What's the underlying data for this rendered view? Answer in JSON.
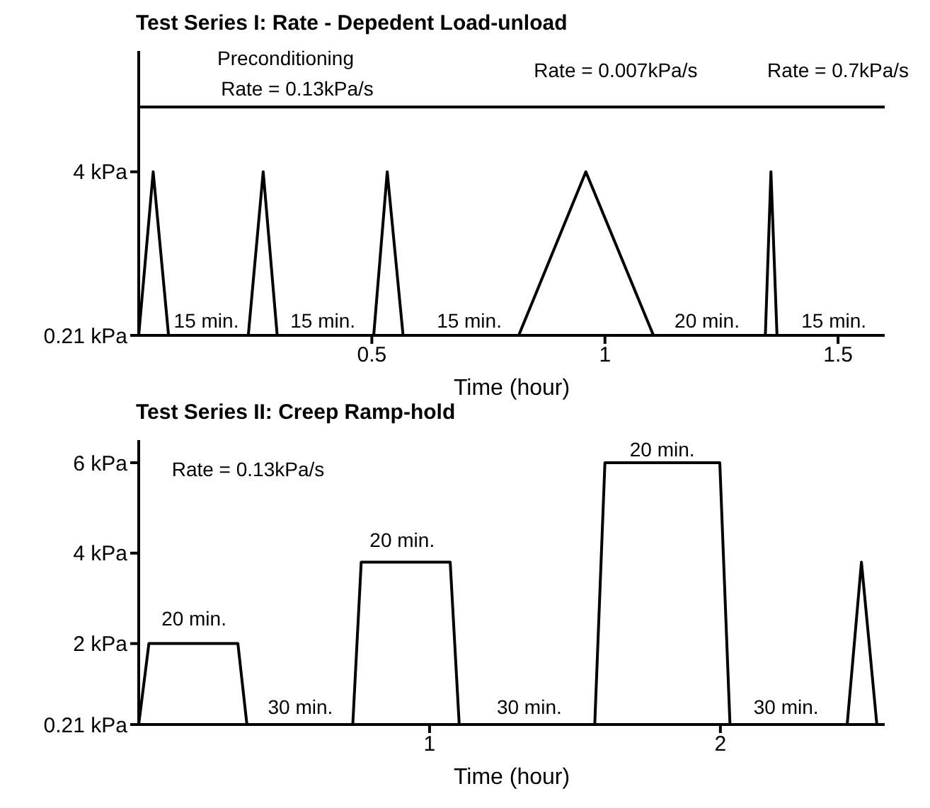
{
  "chart_data": [
    {
      "type": "line",
      "title": "Test Series I: Rate - Depedent Load-unload",
      "xlabel": "Time (hour)",
      "xlim": [
        0,
        1.6
      ],
      "xticks": [
        0.5,
        1,
        1.5
      ],
      "ylim": [
        0.21,
        6.8
      ],
      "yticks": [
        {
          "value": 0.21,
          "label": "0.21 kPa"
        },
        {
          "value": 4,
          "label": "4 kPa"
        }
      ],
      "marker": "none",
      "line_style": "solid",
      "series": [
        {
          "color": "#000000",
          "x": [
            0,
            0.031,
            0.064,
            0.235,
            0.267,
            0.297,
            0.504,
            0.533,
            0.567,
            0.815,
            0.959,
            1.104,
            1.344,
            1.356,
            1.369
          ],
          "values": [
            0.21,
            4,
            0.21,
            0.21,
            4,
            0.21,
            0.21,
            4,
            0.21,
            0.21,
            4,
            0.21,
            0.21,
            4,
            0.21
          ]
        },
        {
          "color": "#000000",
          "x": [
            0,
            0.799,
            1.314,
            1.6
          ],
          "values": [
            5.5,
            5.5,
            5.5,
            5.5
          ]
        }
      ],
      "annotations": [
        "Preconditioning",
        "Rate = 0.13kPa/s",
        "Rate = 0.007kPa/s",
        "Rate = 0.7kPa/s",
        "15 min.",
        "15 min.",
        "15 min.",
        "20 min.",
        "15 min."
      ]
    },
    {
      "type": "line",
      "title": "Test Series II: Creep Ramp-hold",
      "xlabel": "Time (hour)",
      "xlim": [
        0,
        2.565
      ],
      "xticks": [
        1,
        2
      ],
      "ylim": [
        0.21,
        6.5
      ],
      "yticks": [
        {
          "value": 0.21,
          "label": "0.21 kPa"
        },
        {
          "value": 2,
          "label": "2 kPa"
        },
        {
          "value": 4,
          "label": "4 kPa"
        },
        {
          "value": 6,
          "label": "6 kPa"
        }
      ],
      "marker": "none",
      "line_style": "solid",
      "series": [
        {
          "color": "#000000",
          "x": [
            0,
            0.035,
            0.341,
            0.372,
            0.736,
            0.765,
            1.071,
            1.102,
            1.568,
            1.603,
            1.998,
            2.033,
            2.436,
            2.485,
            2.538
          ],
          "values": [
            0.21,
            2,
            2,
            0.21,
            0.21,
            3.8,
            3.8,
            0.21,
            0.21,
            6,
            6,
            0.21,
            0.21,
            3.8,
            0.21
          ]
        }
      ],
      "annotations": [
        "Rate = 0.13kPa/s",
        "20 min.",
        "20 min.",
        "20 min.",
        "30 min.",
        "30 min.",
        "30 min."
      ]
    }
  ]
}
